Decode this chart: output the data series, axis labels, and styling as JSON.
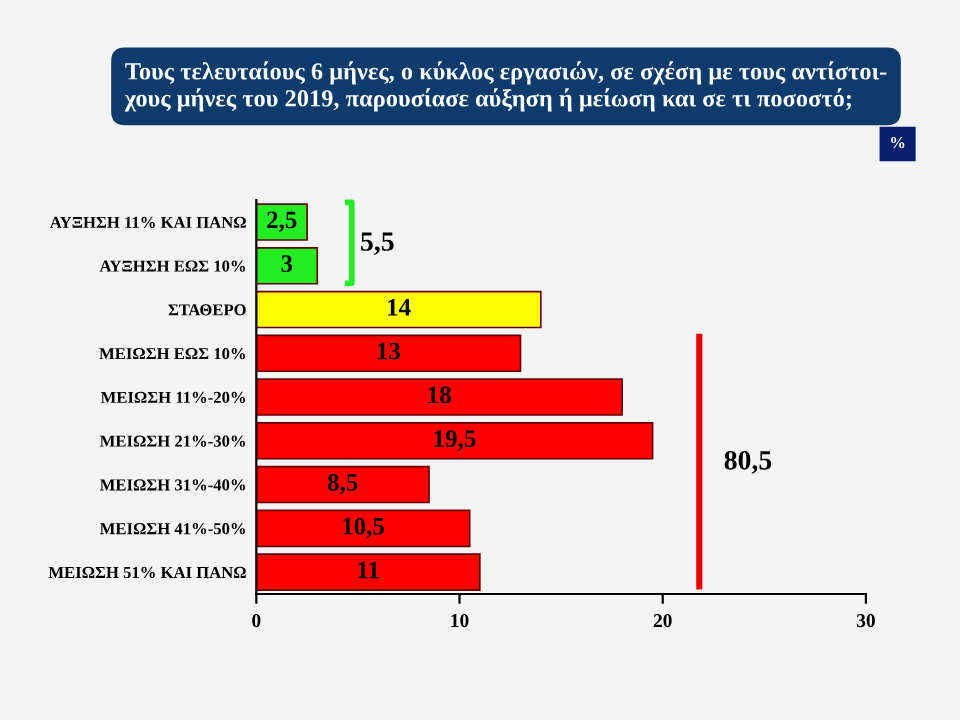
{
  "chart_data": {
    "type": "bar",
    "orientation": "horizontal",
    "title": "Τους τελευταίους 6 μήνες, ο κύκλος εργασιών, σε σχέση με τους αντίστοι-\nχους μήνες του 2019, παρουσίασε αύξηση ή μείωση και σε τι ποσοστό;",
    "categories": [
      "ΑΥΞΗΣΗ 11% ΚΑΙ ΠΑΝΩ",
      "ΑΥΞΗΣΗ ΕΩΣ 10%",
      "ΣΤΑΘΕΡΟ",
      "ΜΕΙΩΣΗ ΕΩΣ 10%",
      "ΜΕΙΩΣΗ 11%-20%",
      "ΜΕΙΩΣΗ 21%-30%",
      "ΜΕΙΩΣΗ 31%-40%",
      "ΜΕΙΩΣΗ 41%-50%",
      "ΜΕΙΩΣΗ 51% ΚΑΙ ΠΑΝΩ"
    ],
    "values": [
      2.5,
      3,
      14,
      13,
      18,
      19.5,
      8.5,
      10.5,
      11
    ],
    "value_labels": [
      "2,5",
      "3",
      "14",
      "13",
      "18",
      "19,5",
      "8,5",
      "10,5",
      "11"
    ],
    "colors": [
      "#22ee22",
      "#22ee22",
      "#ffff00",
      "#ff0000",
      "#ff0000",
      "#ff0000",
      "#ff0000",
      "#ff0000",
      "#ff0000"
    ],
    "xlim": [
      0,
      30
    ],
    "xticks": [
      0,
      10,
      20,
      30
    ],
    "grid": false,
    "legend": false,
    "annotations": [
      "%",
      "5,5",
      "80,5"
    ]
  }
}
